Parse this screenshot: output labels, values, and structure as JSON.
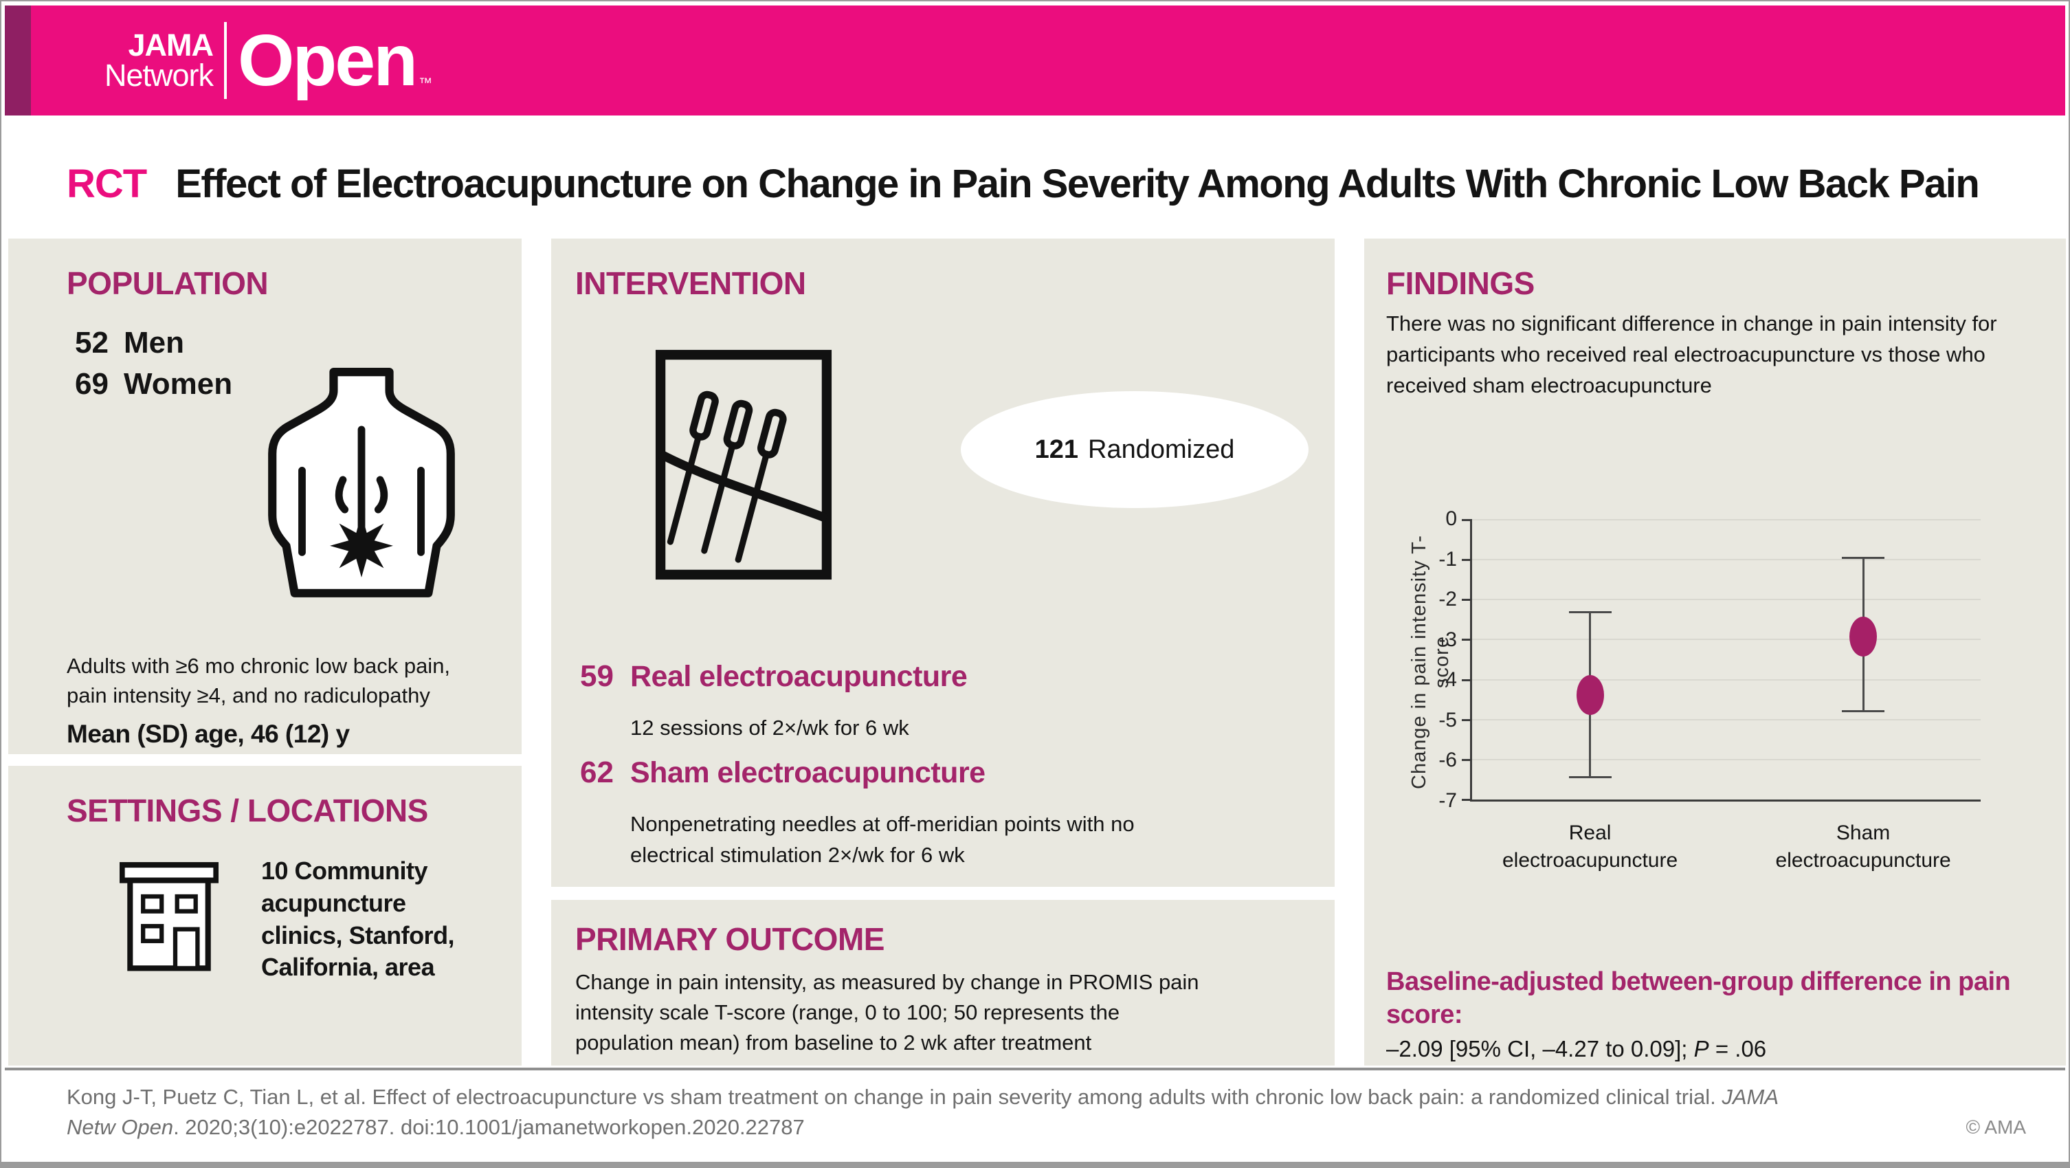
{
  "brand": {
    "jama": "JAMA",
    "network": "Network",
    "open": "Open",
    "tm": "™"
  },
  "title": {
    "tag": "RCT",
    "text": "Effect of Electroacupuncture on Change in Pain Severity Among Adults With Chronic Low Back Pain"
  },
  "population": {
    "heading": "POPULATION",
    "stats": [
      {
        "value": "52",
        "label": "Men"
      },
      {
        "value": "69",
        "label": "Women"
      }
    ],
    "criteria": "Adults with ≥6 mo chronic low back pain, pain intensity ≥4, and no radiculopathy",
    "mean_age": "Mean (SD) age, 46 (12) y"
  },
  "settings": {
    "heading": "SETTINGS / LOCATIONS",
    "text": "10 Community acupuncture clinics, Stanford, California, area"
  },
  "intervention": {
    "heading": "INTERVENTION",
    "randomized_value": "121",
    "randomized_label": "Randomized",
    "groups": [
      {
        "value": "59",
        "label": "Real electroacupuncture",
        "detail": "12 sessions of 2×/wk for 6 wk"
      },
      {
        "value": "62",
        "label": "Sham electroacupuncture",
        "detail": "Nonpenetrating needles at off-meridian points with no electrical stimulation 2×/wk for 6 wk"
      }
    ]
  },
  "primary_outcome": {
    "heading": "PRIMARY OUTCOME",
    "text": "Change in pain intensity, as measured by change in PROMIS pain intensity scale T-score (range, 0 to 100; 50 represents the population mean) from baseline to 2 wk after treatment"
  },
  "findings": {
    "heading": "FINDINGS",
    "summary": "There was no significant difference in change in pain intensity for participants who received real electroacupuncture vs those who received sham electroacupuncture",
    "baseline_heading": "Baseline-adjusted between-group difference in pain score:",
    "result_value": "–2.09 [95% CI, –4.27 to 0.09]; ",
    "result_p_label": "P",
    "result_p_value": " = .06"
  },
  "chart_data": {
    "type": "scatter",
    "title": "",
    "xlabel": "",
    "ylabel": "Change in pain intensity T-score",
    "ylim": [
      -7,
      0
    ],
    "yticks": [
      0,
      -1,
      -2,
      -3,
      -4,
      -5,
      -6,
      -7
    ],
    "grid": true,
    "legend": "none",
    "categories": [
      "Real electroacupuncture",
      "Sham electroacupuncture"
    ],
    "category_lines": [
      [
        "Real",
        "electroacupuncture"
      ],
      [
        "Sham",
        "electroacupuncture"
      ]
    ],
    "x_positions": [
      0.235,
      0.77
    ],
    "series": [
      {
        "name": "Change in pain intensity T-score (95% CI)",
        "points": [
          {
            "category": "Real electroacupuncture",
            "mean": -4.35,
            "ci_high": -2.3,
            "ci_low": -6.4
          },
          {
            "category": "Sham electroacupuncture",
            "mean": -2.9,
            "ci_high": -0.95,
            "ci_low": -4.75
          }
        ]
      }
    ],
    "marker_color": "#A62067"
  },
  "footer": {
    "citation_line1": "Kong J-T, Puetz C, Tian L, et al. Effect of electroacupuncture vs sham treatment on change in pain severity among adults with chronic low back pain: a randomized clinical trial. ",
    "citation_line1_italic": "JAMA",
    "citation_line2_italic": "Netw Open",
    "citation_line2": ". 2020;3(10):e2022787. doi:10.1001/jamanetworkopen.2020.22787",
    "copyright": "© AMA"
  },
  "colors": {
    "header_pink": "#EB0D7E",
    "accent_stripe": "#8F1F63",
    "heading_magenta": "#A3246A",
    "marker_magenta": "#A62067",
    "panel_beige": "#E9E8E0",
    "gridline": "#D9D8D0"
  }
}
